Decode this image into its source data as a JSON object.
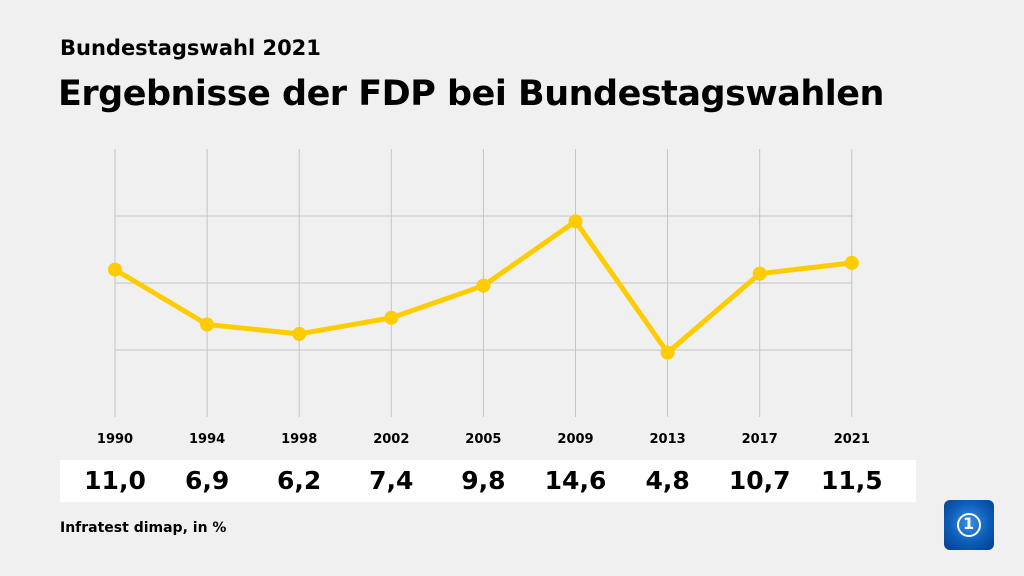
{
  "header": {
    "subtitle": "Bundestagswahl 2021",
    "title": "Ergebnisse der FDP bei Bundestagswahlen"
  },
  "source": "Infratest dimap, in %",
  "logo": {
    "name": "tagesschau-logo",
    "text": "1"
  },
  "chart_data": {
    "type": "line",
    "categories": [
      "1990",
      "1994",
      "1998",
      "2002",
      "2005",
      "2009",
      "2013",
      "2017",
      "2021"
    ],
    "values": [
      11.0,
      6.9,
      6.2,
      7.4,
      9.8,
      14.6,
      4.8,
      10.7,
      11.5
    ],
    "value_labels": [
      "11,0",
      "6,9",
      "6,2",
      "7,4",
      "9,8",
      "14,6",
      "4,8",
      "10,7",
      "11,5"
    ],
    "ylim": [
      0,
      20
    ],
    "gridlines": [
      5,
      10,
      15
    ],
    "grid": true,
    "color": "#ffcc00",
    "unit": "%"
  }
}
